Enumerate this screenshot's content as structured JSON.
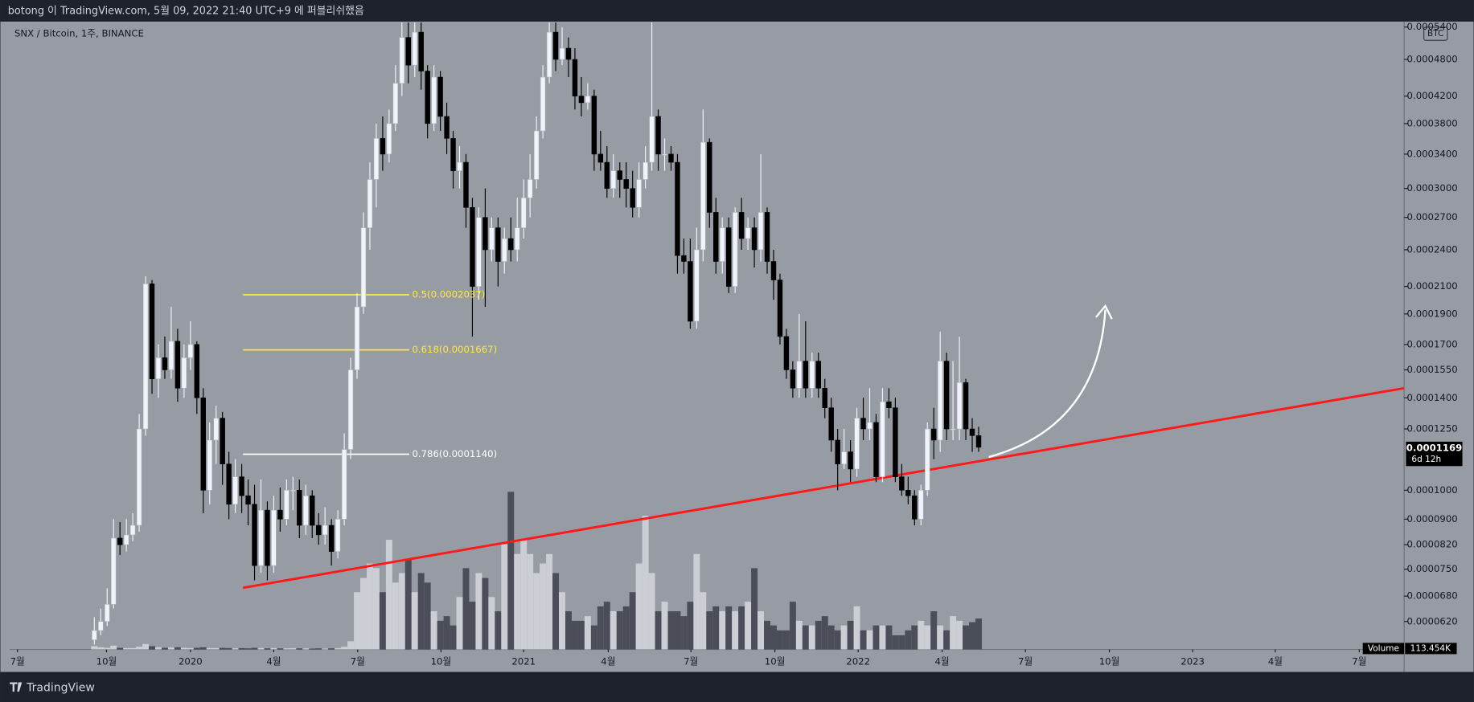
{
  "header": {
    "publish": "botong 이 TradingView.com, 5월 09, 2022 21:40 UTC+9 에 퍼블리쉬했음"
  },
  "footer": {
    "brand": "TradingView"
  },
  "chart_data": {
    "type": "candlestick",
    "title": "SNX / Bitcoin, 1주, BINANCE",
    "currency": "BTC",
    "log": true,
    "grid": false,
    "up_color": "#f0f3fa",
    "down_color": "#000000",
    "xlim": [
      -13.2,
      204.4
    ],
    "ylim": [
      5.6e-05,
      0.000549
    ],
    "xticks": [
      {
        "value": -12.0,
        "label": "7월"
      },
      {
        "value": 1.9,
        "label": "10월"
      },
      {
        "value": 15.0,
        "label": "2020"
      },
      {
        "value": 28.0,
        "label": "4월"
      },
      {
        "value": 41.1,
        "label": "7월"
      },
      {
        "value": 54.1,
        "label": "10월"
      },
      {
        "value": 67.0,
        "label": "2021"
      },
      {
        "value": 80.2,
        "label": "4월"
      },
      {
        "value": 93.1,
        "label": "7월"
      },
      {
        "value": 106.2,
        "label": "10월"
      },
      {
        "value": 119.2,
        "label": "2022"
      },
      {
        "value": 132.3,
        "label": "4월"
      },
      {
        "value": 145.3,
        "label": "7월"
      },
      {
        "value": 158.4,
        "label": "10월"
      },
      {
        "value": 171.4,
        "label": "2023"
      },
      {
        "value": 184.3,
        "label": "4월"
      },
      {
        "value": 197.4,
        "label": "7월"
      }
    ],
    "yticks": [
      {
        "value": 0.00054,
        "label": "0.0005400"
      },
      {
        "value": 0.00048,
        "label": "0.0004800"
      },
      {
        "value": 0.00042,
        "label": "0.0004200"
      },
      {
        "value": 0.00038,
        "label": "0.0003800"
      },
      {
        "value": 0.00034,
        "label": "0.0003400"
      },
      {
        "value": 0.0003,
        "label": "0.0003000"
      },
      {
        "value": 0.00027,
        "label": "0.0002700"
      },
      {
        "value": 0.00024,
        "label": "0.0002400"
      },
      {
        "value": 0.00021,
        "label": "0.0002100"
      },
      {
        "value": 0.00019,
        "label": "0.0001900"
      },
      {
        "value": 0.00017,
        "label": "0.0001700"
      },
      {
        "value": 0.000155,
        "label": "0.0001550"
      },
      {
        "value": 0.00014,
        "label": "0.0001400"
      },
      {
        "value": 0.000125,
        "label": "0.0001250"
      },
      {
        "value": 0.0001,
        "label": "0.0001000"
      },
      {
        "value": 9e-05,
        "label": "0.0000900"
      },
      {
        "value": 8.2e-05,
        "label": "0.0000820"
      },
      {
        "value": 7.5e-05,
        "label": "0.0000750"
      },
      {
        "value": 6.8e-05,
        "label": "0.0000680"
      },
      {
        "value": 6.2e-05,
        "label": "0.0000620"
      }
    ],
    "candles": [
      [
        5.8e-05,
        6.3e-05,
        5.7e-05,
        6e-05
      ],
      [
        6e-05,
        6.5e-05,
        5.9e-05,
        6.2e-05
      ],
      [
        6.2e-05,
        7e-05,
        6.1e-05,
        6.6e-05
      ],
      [
        6.6e-05,
        9e-05,
        6.5e-05,
        8.4e-05
      ],
      [
        8.4e-05,
        8.9e-05,
        7.9e-05,
        8.2e-05
      ],
      [
        8.2e-05,
        9e-05,
        8e-05,
        8.5e-05
      ],
      [
        8.5e-05,
        9.2e-05,
        8.3e-05,
        8.8e-05
      ],
      [
        8.8e-05,
        0.000132,
        8.6e-05,
        0.000125
      ],
      [
        0.000125,
        0.000218,
        0.000122,
        0.000212
      ],
      [
        0.000212,
        0.000215,
        0.000142,
        0.00015
      ],
      [
        0.00015,
        0.00017,
        0.00014,
        0.000162
      ],
      [
        0.000162,
        0.000175,
        0.00015,
        0.000155
      ],
      [
        0.000155,
        0.000195,
        0.00015,
        0.000172
      ],
      [
        0.000172,
        0.00018,
        0.000138,
        0.000145
      ],
      [
        0.000145,
        0.00017,
        0.00014,
        0.000162
      ],
      [
        0.000162,
        0.000185,
        0.000155,
        0.00017
      ],
      [
        0.00017,
        0.000172,
        0.000132,
        0.00014
      ],
      [
        0.00014,
        0.000145,
        9.2e-05,
        0.0001
      ],
      [
        0.0001,
        0.000128,
        9.5e-05,
        0.00012
      ],
      [
        0.00012,
        0.000136,
        0.00011,
        0.00013
      ],
      [
        0.00013,
        0.000133,
        0.000102,
        0.00011
      ],
      [
        0.00011,
        0.000115,
        9e-05,
        9.5e-05
      ],
      [
        9.5e-05,
        0.000112,
        9.2e-05,
        0.000105
      ],
      [
        0.000105,
        0.00011,
        9.2e-05,
        9.8e-05
      ],
      [
        9.8e-05,
        0.000104,
        8.8e-05,
        9.5e-05
      ],
      [
        9.5e-05,
        0.000102,
        7.2e-05,
        7.6e-05
      ],
      [
        7.6e-05,
        0.000104,
        7.4e-05,
        9.3e-05
      ],
      [
        9.3e-05,
        9.6e-05,
        7.2e-05,
        7.6e-05
      ],
      [
        7.6e-05,
        9.8e-05,
        7.4e-05,
        9.3e-05
      ],
      [
        9.3e-05,
        0.000101,
        8.6e-05,
        9e-05
      ],
      [
        9e-05,
        0.000104,
        8.8e-05,
        0.0001
      ],
      [
        0.0001,
        0.000105,
        9.3e-05,
        0.0001
      ],
      [
        0.0001,
        0.000104,
        8.4e-05,
        8.8e-05
      ],
      [
        8.8e-05,
        0.000102,
        8.5e-05,
        9.8e-05
      ],
      [
        9.8e-05,
        0.0001,
        8.4e-05,
        8.8e-05
      ],
      [
        8.8e-05,
        9.2e-05,
        8.2e-05,
        8.5e-05
      ],
      [
        8.5e-05,
        9.4e-05,
        8.2e-05,
        8.8e-05
      ],
      [
        8.8e-05,
        9e-05,
        7.6e-05,
        8e-05
      ],
      [
        8e-05,
        9.3e-05,
        7.8e-05,
        9e-05
      ],
      [
        9e-05,
        0.000123,
        8.8e-05,
        0.000116
      ],
      [
        0.000116,
        0.000162,
        0.000112,
        0.000155
      ],
      [
        0.000155,
        0.000205,
        0.00015,
        0.000195
      ],
      [
        0.000195,
        0.000275,
        0.00019,
        0.00026
      ],
      [
        0.00026,
        0.00033,
        0.00024,
        0.00031
      ],
      [
        0.00031,
        0.00038,
        0.00028,
        0.00036
      ],
      [
        0.00036,
        0.00039,
        0.00032,
        0.00034
      ],
      [
        0.00034,
        0.0004,
        0.00033,
        0.00038
      ],
      [
        0.00038,
        0.00047,
        0.00037,
        0.00044
      ],
      [
        0.00044,
        0.00055,
        0.00042,
        0.00052
      ],
      [
        0.00052,
        0.00055,
        0.00044,
        0.00047
      ],
      [
        0.00047,
        0.00056,
        0.00045,
        0.00053
      ],
      [
        0.00053,
        0.00055,
        0.00043,
        0.00046
      ],
      [
        0.00046,
        0.00047,
        0.00036,
        0.00038
      ],
      [
        0.00038,
        0.00047,
        0.00037,
        0.00045
      ],
      [
        0.00045,
        0.00046,
        0.00037,
        0.00039
      ],
      [
        0.00039,
        0.00041,
        0.00034,
        0.00036
      ],
      [
        0.00036,
        0.00037,
        0.0003,
        0.00032
      ],
      [
        0.00032,
        0.00035,
        0.0003,
        0.00033
      ],
      [
        0.00033,
        0.00034,
        0.00026,
        0.00028
      ],
      [
        0.00028,
        0.00029,
        0.000175,
        0.00021
      ],
      [
        0.00021,
        0.00028,
        0.0002,
        0.00027
      ],
      [
        0.00027,
        0.0003,
        0.000195,
        0.00024
      ],
      [
        0.00024,
        0.00027,
        0.00023,
        0.00026
      ],
      [
        0.00026,
        0.00027,
        0.00021,
        0.00023
      ],
      [
        0.00023,
        0.00026,
        0.00022,
        0.00025
      ],
      [
        0.00025,
        0.00027,
        0.00023,
        0.00024
      ],
      [
        0.00024,
        0.00029,
        0.00023,
        0.00026
      ],
      [
        0.00026,
        0.00031,
        0.00025,
        0.00029
      ],
      [
        0.00029,
        0.00034,
        0.00027,
        0.00031
      ],
      [
        0.00031,
        0.00039,
        0.0003,
        0.00037
      ],
      [
        0.00037,
        0.00047,
        0.00036,
        0.00045
      ],
      [
        0.00045,
        0.00055,
        0.00044,
        0.00053
      ],
      [
        0.00053,
        0.00055,
        0.00046,
        0.00048
      ],
      [
        0.00048,
        0.00054,
        0.00047,
        0.0005
      ],
      [
        0.0005,
        0.00052,
        0.00045,
        0.00048
      ],
      [
        0.00048,
        0.0005,
        0.0004,
        0.00042
      ],
      [
        0.00042,
        0.00045,
        0.00039,
        0.00041
      ],
      [
        0.00041,
        0.00044,
        0.0004,
        0.00042
      ],
      [
        0.00042,
        0.00043,
        0.00032,
        0.00034
      ],
      [
        0.00034,
        0.00037,
        0.00032,
        0.00033
      ],
      [
        0.00033,
        0.00035,
        0.00029,
        0.0003
      ],
      [
        0.0003,
        0.00034,
        0.00029,
        0.00032
      ],
      [
        0.00032,
        0.00033,
        0.00029,
        0.00031
      ],
      [
        0.00031,
        0.00033,
        0.00028,
        0.0003
      ],
      [
        0.0003,
        0.00032,
        0.00027,
        0.00028
      ],
      [
        0.00028,
        0.00033,
        0.00027,
        0.00031
      ],
      [
        0.00031,
        0.00035,
        0.0003,
        0.00033
      ],
      [
        0.00033,
        0.00057,
        0.00032,
        0.00039
      ],
      [
        0.00039,
        0.0004,
        0.00032,
        0.00034
      ],
      [
        0.00034,
        0.00036,
        0.00032,
        0.00034
      ],
      [
        0.00034,
        0.00035,
        0.00032,
        0.00033
      ],
      [
        0.00033,
        0.00034,
        0.00022,
        0.000235
      ],
      [
        0.000235,
        0.00025,
        0.00022,
        0.00023
      ],
      [
        0.00023,
        0.00025,
        0.00018,
        0.000185
      ],
      [
        0.000185,
        0.00026,
        0.00018,
        0.00024
      ],
      [
        0.00024,
        0.0004,
        0.00023,
        0.000355
      ],
      [
        0.000355,
        0.00036,
        0.00026,
        0.000275
      ],
      [
        0.000275,
        0.00029,
        0.00022,
        0.00023
      ],
      [
        0.00023,
        0.00027,
        0.00022,
        0.00026
      ],
      [
        0.00026,
        0.00027,
        0.000205,
        0.00021
      ],
      [
        0.00021,
        0.00028,
        0.000205,
        0.000275
      ],
      [
        0.000275,
        0.00029,
        0.00024,
        0.00025
      ],
      [
        0.00025,
        0.00027,
        0.00024,
        0.00026
      ],
      [
        0.00026,
        0.00027,
        0.000225,
        0.00024
      ],
      [
        0.00024,
        0.00034,
        0.00023,
        0.000275
      ],
      [
        0.000275,
        0.00028,
        0.00022,
        0.00023
      ],
      [
        0.00023,
        0.00024,
        0.0002,
        0.000215
      ],
      [
        0.000215,
        0.00022,
        0.00017,
        0.000175
      ],
      [
        0.000175,
        0.00018,
        0.00015,
        0.000155
      ],
      [
        0.000155,
        0.00016,
        0.00014,
        0.000145
      ],
      [
        0.000145,
        0.00019,
        0.00014,
        0.00016
      ],
      [
        0.00016,
        0.000185,
        0.00014,
        0.000145
      ],
      [
        0.000145,
        0.000165,
        0.00014,
        0.00016
      ],
      [
        0.00016,
        0.000165,
        0.00014,
        0.000145
      ],
      [
        0.000145,
        0.00015,
        0.00013,
        0.000135
      ],
      [
        0.000135,
        0.00014,
        0.000115,
        0.00012
      ],
      [
        0.00012,
        0.000125,
        0.0001,
        0.00011
      ],
      [
        0.00011,
        0.000125,
        0.000108,
        0.000115
      ],
      [
        0.000115,
        0.00012,
        0.000103,
        0.000108
      ],
      [
        0.000108,
        0.000135,
        0.000105,
        0.00013
      ],
      [
        0.00013,
        0.00014,
        0.00012,
        0.000125
      ],
      [
        0.000125,
        0.000145,
        0.00012,
        0.000128
      ],
      [
        0.000128,
        0.000132,
        0.000103,
        0.000105
      ],
      [
        0.000105,
        0.000145,
        0.000103,
        0.000138
      ],
      [
        0.000138,
        0.000145,
        0.00013,
        0.000135
      ],
      [
        0.000135,
        0.00014,
        0.000103,
        0.000105
      ],
      [
        0.000105,
        0.00011,
        9.8e-05,
        0.0001
      ],
      [
        0.0001,
        0.000105,
        9.5e-05,
        9.8e-05
      ],
      [
        9.8e-05,
        0.0001,
        8.8e-05,
        9e-05
      ],
      [
        9e-05,
        0.000102,
        8.8e-05,
        0.0001
      ],
      [
        0.0001,
        0.000128,
        9.8e-05,
        0.000125
      ],
      [
        0.000125,
        0.000135,
        0.000112,
        0.00012
      ],
      [
        0.00012,
        0.000178,
        0.000115,
        0.00016
      ],
      [
        0.00016,
        0.000165,
        0.00012,
        0.000125
      ],
      [
        0.000125,
        0.00016,
        0.00012,
        0.000125
      ],
      [
        0.000125,
        0.000175,
        0.00012,
        0.000148
      ],
      [
        0.000148,
        0.00015,
        0.00012,
        0.000125
      ],
      [
        0.000125,
        0.00013,
        0.000115,
        0.000122
      ],
      [
        0.000122,
        0.000126,
        0.000115,
        0.0001169
      ]
    ],
    "last_price_label": "0.0001169",
    "countdown": "6d 12h",
    "volume": {
      "name": "Volume",
      "up_color": "#d1d4dc",
      "down_color": "#434651",
      "last_label": "113.454K",
      "values": [
        12,
        8,
        6,
        14,
        6,
        5,
        5,
        10,
        20,
        12,
        8,
        6,
        7,
        8,
        6,
        5,
        6,
        8,
        5,
        5,
        6,
        5,
        4,
        5,
        4,
        6,
        5,
        4,
        5,
        4,
        4,
        5,
        4,
        4,
        3,
        4,
        3,
        4,
        5,
        10,
        30,
        210,
        262,
        315,
        298,
        210,
        402,
        245,
        280,
        332,
        210,
        280,
        245,
        140,
        105,
        122,
        88,
        192,
        298,
        175,
        280,
        262,
        192,
        140,
        385,
        578,
        350,
        402,
        350,
        280,
        315,
        350,
        280,
        210,
        140,
        105,
        105,
        122,
        88,
        158,
        175,
        140,
        140,
        158,
        210,
        315,
        490,
        280,
        140,
        175,
        140,
        140,
        122,
        175,
        350,
        210,
        140,
        158,
        140,
        158,
        140,
        158,
        175,
        298,
        140,
        105,
        88,
        70,
        70,
        175,
        105,
        88,
        88,
        105,
        122,
        88,
        70,
        88,
        105,
        158,
        70,
        70,
        88,
        88,
        88,
        52,
        52,
        70,
        88,
        105,
        88,
        140,
        88,
        70,
        122,
        105,
        88,
        100,
        113.454
      ]
    },
    "fib_levels": [
      {
        "label": "0.5(0.0002037)",
        "value": 0.0002037,
        "color": "#ffeb3b"
      },
      {
        "label": "0.618(0.0001667)",
        "value": 0.0001667,
        "color": "#ffeb3b"
      },
      {
        "label": "0.786(0.0001140)",
        "value": 0.000114,
        "color": "#ffffff"
      }
    ],
    "trendline": {
      "x": [
        23.2,
        204.4
      ],
      "y": [
        7.01e-05,
        0.000145
      ],
      "color": "#ff1a1a"
    }
  }
}
